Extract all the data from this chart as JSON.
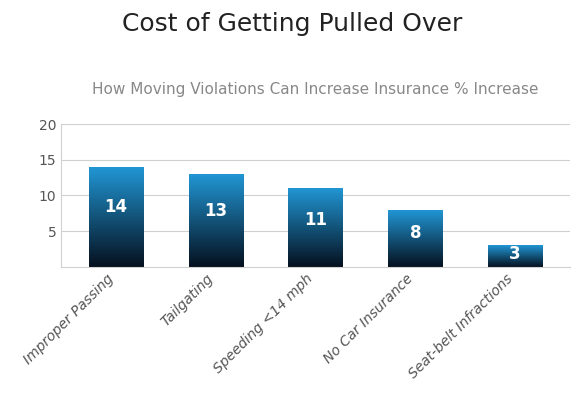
{
  "title": "Cost of Getting Pulled Over",
  "subtitle": "How Moving Violations Can Increase Insurance % Increase",
  "categories": [
    "Improper Passing",
    "Tailgating",
    "Speeding <14 mph",
    "No Car Insurance",
    "Seat-belt Infractions"
  ],
  "values": [
    14,
    13,
    11,
    8,
    3
  ],
  "ylim": [
    0,
    20
  ],
  "yticks": [
    5,
    10,
    15,
    20
  ],
  "bar_color_top": "#05101e",
  "bar_color_bottom": "#2196d4",
  "background_color": "#ffffff",
  "grid_color": "#d0d0d0",
  "title_fontsize": 18,
  "subtitle_fontsize": 11,
  "tick_fontsize": 10,
  "bar_label_fontsize": 12,
  "bar_width": 0.55,
  "label_color": "#555555"
}
